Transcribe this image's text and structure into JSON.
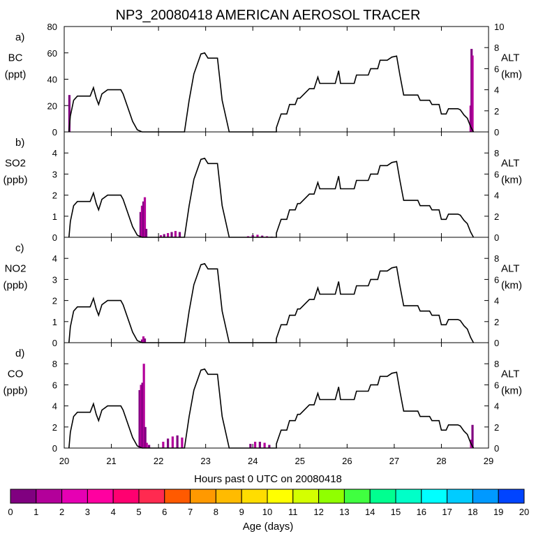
{
  "title": "NP3_20080418 AMERICAN AEROSOL TRACER",
  "x_axis": {
    "label": "Hours past 0 UTC on 20080418",
    "ticks": [
      "20",
      "21",
      "22",
      "23",
      "24",
      "25",
      "26",
      "27",
      "28",
      "29"
    ]
  },
  "colorbar": {
    "label": "Age (days)",
    "ticks": [
      "0",
      "1",
      "2",
      "3",
      "4",
      "5",
      "6",
      "7",
      "8",
      "9",
      "10",
      "11",
      "12",
      "13",
      "14",
      "15",
      "16",
      "17",
      "18",
      "19",
      "20"
    ],
    "colors": [
      "#800080",
      "#b3009a",
      "#e600b3",
      "#ff00a0",
      "#ff0070",
      "#ff2a50",
      "#ff5a00",
      "#ff9900",
      "#ffbb00",
      "#ffdd00",
      "#ffff00",
      "#d4ff00",
      "#90ff00",
      "#40ff40",
      "#00ff90",
      "#00ffc8",
      "#00ffff",
      "#00ccff",
      "#0099ff",
      "#0044ff",
      "#4400ff"
    ]
  },
  "panels": [
    {
      "letter": "a)",
      "species": "BC",
      "unit": "(ppt)",
      "ylim": [
        0,
        80
      ],
      "yticks": [
        "0",
        "20",
        "40",
        "60",
        "80"
      ],
      "alt_label": "ALT",
      "alt_unit": "(km)",
      "alt_ticks": [
        "0",
        "2",
        "4",
        "6",
        "8",
        "10"
      ]
    },
    {
      "letter": "b)",
      "species": "SO2",
      "unit": "(ppb)",
      "ylim": [
        0,
        5
      ],
      "yticks": [
        "0",
        "1",
        "2",
        "3",
        "4"
      ],
      "alt_label": "ALT",
      "alt_unit": "(km)",
      "alt_ticks": [
        "0",
        "2",
        "4",
        "6",
        "8"
      ]
    },
    {
      "letter": "c)",
      "species": "NO2",
      "unit": "(ppb)",
      "ylim": [
        0,
        5
      ],
      "yticks": [
        "0",
        "1",
        "2",
        "3",
        "4"
      ],
      "alt_label": "ALT",
      "alt_unit": "(km)",
      "alt_ticks": [
        "0",
        "2",
        "4",
        "6",
        "8"
      ]
    },
    {
      "letter": "d)",
      "species": "CO",
      "unit": "(ppb)",
      "ylim": [
        0,
        10
      ],
      "yticks": [
        "0",
        "2",
        "4",
        "6",
        "8"
      ],
      "alt_label": "ALT",
      "alt_unit": "(km)",
      "alt_ticks": [
        "0",
        "2",
        "4",
        "6",
        "8"
      ]
    }
  ],
  "chart_data": {
    "type": "bar",
    "xlim": [
      20,
      29
    ],
    "altitude_km": {
      "x": [
        20.1,
        20.13,
        20.2,
        20.28,
        20.35,
        20.55,
        20.62,
        20.68,
        20.73,
        20.8,
        20.92,
        21.2,
        21.25,
        21.45,
        21.55,
        21.65,
        21.72,
        22.0,
        22.3,
        22.55,
        22.65,
        22.75,
        22.9,
        22.98,
        23.05,
        23.25,
        23.35,
        23.5,
        24.5,
        24.5,
        24.6,
        24.72,
        24.78,
        24.9,
        24.95,
        25.0,
        25.2,
        25.3,
        25.38,
        25.42,
        25.48,
        25.75,
        25.82,
        25.86,
        25.9,
        26.15,
        26.2,
        26.3,
        26.38,
        26.45,
        26.5,
        26.65,
        26.7,
        26.85,
        26.95,
        27.05,
        27.12,
        27.2,
        27.3,
        27.5,
        27.55,
        27.75,
        27.8,
        27.95,
        28.0,
        28.1,
        28.15,
        28.35,
        28.4,
        28.48,
        28.55,
        28.62,
        28.68
      ],
      "y": [
        0,
        1.5,
        3.0,
        3.4,
        3.4,
        3.4,
        4.2,
        3.2,
        2.6,
        3.6,
        4.0,
        4.0,
        3.6,
        1.0,
        0.2,
        0,
        0,
        0,
        0,
        0,
        3.0,
        5.5,
        7.4,
        7.5,
        7.0,
        7.0,
        3.0,
        0,
        0,
        0.4,
        1.7,
        1.7,
        2.6,
        2.6,
        3.2,
        3.2,
        4.1,
        4.1,
        5.2,
        4.6,
        4.6,
        4.6,
        5.8,
        4.6,
        4.6,
        4.6,
        5.4,
        5.4,
        5.4,
        5.4,
        6.0,
        6.0,
        6.8,
        6.8,
        7.1,
        7.2,
        5.4,
        3.5,
        3.5,
        3.5,
        3.0,
        3.0,
        2.6,
        2.6,
        1.7,
        1.7,
        2.2,
        2.2,
        2.1,
        1.6,
        1.3,
        0.5,
        0
      ]
    },
    "series": [
      {
        "panel": "a",
        "color_age_days": [
          0,
          1
        ],
        "x": [
          20.11,
          28.62,
          28.64,
          28.66
        ],
        "values": [
          28,
          20,
          63,
          58
        ]
      },
      {
        "panel": "b",
        "color_age_days": [
          0,
          1,
          2
        ],
        "x": [
          21.62,
          21.65,
          21.68,
          21.71,
          21.74,
          22.05,
          22.12,
          22.2,
          22.28,
          22.36,
          22.45,
          23.9,
          24.0,
          24.1,
          24.2,
          24.3,
          24.4
        ],
        "values": [
          1.2,
          1.5,
          1.7,
          1.9,
          0.4,
          0.1,
          0.15,
          0.2,
          0.25,
          0.3,
          0.25,
          0.05,
          0.1,
          0.12,
          0.08,
          0.05,
          0.03
        ]
      },
      {
        "panel": "c",
        "color_age_days": [
          0,
          1
        ],
        "x": [
          21.65,
          21.68,
          21.71
        ],
        "values": [
          0.15,
          0.3,
          0.2
        ]
      },
      {
        "panel": "d",
        "color_age_days": [
          0,
          1,
          2
        ],
        "x": [
          21.6,
          21.63,
          21.66,
          21.69,
          21.72,
          21.75,
          21.8,
          22.1,
          22.2,
          22.3,
          22.4,
          22.5,
          23.95,
          24.05,
          24.15,
          24.25,
          24.35,
          28.63,
          28.66
        ],
        "values": [
          5.5,
          6.0,
          6.2,
          8.0,
          2.0,
          0.5,
          0.3,
          0.6,
          0.9,
          1.1,
          1.2,
          1.0,
          0.4,
          0.6,
          0.6,
          0.5,
          0.3,
          0.8,
          2.2
        ]
      }
    ]
  }
}
